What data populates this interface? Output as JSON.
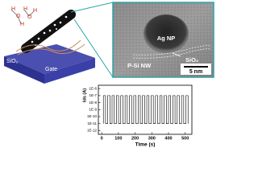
{
  "schematic": {
    "substrate_label": "SiO₂",
    "gate_label": "Gate",
    "molecule_labels": [
      "H",
      "O",
      "H",
      "H",
      "O",
      "H"
    ]
  },
  "tem": {
    "particle_label": "Ag NP",
    "wire_label": "P-Si NW",
    "oxide_label": "SiO₂",
    "scale_label": "5 nm"
  },
  "chart_data": {
    "type": "line",
    "xlabel": "Time (s)",
    "ylabel": "Ids (A)",
    "log_y": true,
    "xlim": [
      -20,
      540
    ],
    "xticks": [
      0,
      100,
      200,
      300,
      400,
      500
    ],
    "ylim": [
      3e-13,
      3e-06
    ],
    "yticks": [
      {
        "value": 1e-06,
        "label": "1E-6"
      },
      {
        "value": 1e-07,
        "label": "1E-7"
      },
      {
        "value": 1e-08,
        "label": "1E-8"
      },
      {
        "value": 1e-09,
        "label": "1E-9"
      },
      {
        "value": 1e-10,
        "label": "1E-10"
      },
      {
        "value": 1e-11,
        "label": "1E-11"
      },
      {
        "value": 1e-12,
        "label": "1E-12"
      }
    ],
    "series": [
      {
        "color": "#000000",
        "x": [
          10,
          10,
          23,
          23,
          36,
          36,
          49,
          49,
          62,
          62,
          75,
          75,
          88,
          88,
          101,
          101,
          114,
          114,
          127,
          127,
          140,
          140,
          153,
          153,
          166,
          166,
          179,
          179,
          192,
          192,
          205,
          205,
          218,
          218,
          231,
          231,
          244,
          244,
          257,
          257,
          270,
          270,
          283,
          283,
          296,
          296,
          309,
          309,
          322,
          322,
          335,
          335,
          348,
          348,
          361,
          361,
          374,
          374,
          387,
          387,
          400,
          400,
          413,
          413,
          426,
          426,
          439,
          439,
          452,
          452,
          465,
          465,
          478,
          478,
          491,
          491,
          504,
          504,
          517,
          517
        ],
        "values": [
          1e-11,
          1e-07,
          1e-07,
          1e-11,
          1e-11,
          1e-07,
          1e-07,
          1e-11,
          1e-11,
          1e-07,
          1e-07,
          1e-11,
          1e-11,
          1e-07,
          1e-07,
          1e-11,
          1e-11,
          1e-07,
          1e-07,
          1e-11,
          1e-11,
          1e-07,
          1e-07,
          1e-11,
          1e-11,
          1e-07,
          1e-07,
          1e-11,
          1e-11,
          1e-07,
          1e-07,
          1e-11,
          1e-11,
          1e-07,
          1e-07,
          1e-11,
          1e-11,
          1e-07,
          1e-07,
          1e-11,
          1e-11,
          1e-07,
          1e-07,
          1e-11,
          1e-11,
          1e-07,
          1e-07,
          1e-11,
          1e-11,
          1e-07,
          1e-07,
          1e-11,
          1e-11,
          1e-07,
          1e-07,
          1e-11,
          1e-11,
          1e-07,
          1e-07,
          1e-11,
          1e-11,
          1e-07,
          1e-07,
          1e-11,
          1e-11,
          1e-07,
          1e-07,
          1e-11,
          1e-11,
          1e-07,
          1e-07,
          1e-11,
          1e-11,
          1e-07,
          1e-07,
          1e-11,
          1e-11,
          1e-07,
          1e-07,
          1e-11
        ]
      }
    ]
  }
}
